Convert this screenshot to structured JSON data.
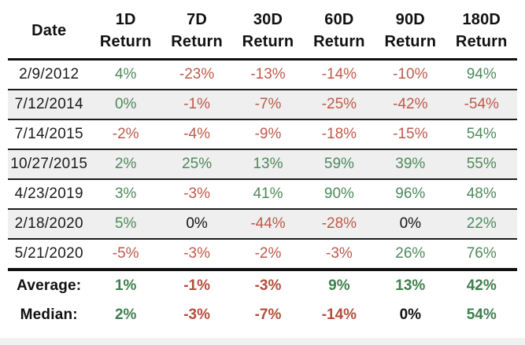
{
  "colors": {
    "green": "#4e8a5b",
    "red": "#bd5a4a",
    "black": "#141414",
    "green_bold": "#3f7f4d",
    "red_bold": "#b24e3c",
    "black_bold": "#111111",
    "alt_row_bg": "#efefef",
    "line": "#141414"
  },
  "table": {
    "columns": [
      {
        "label": "Date"
      },
      {
        "period": "1D",
        "label": "Return"
      },
      {
        "period": "7D",
        "label": "Return"
      },
      {
        "period": "30D",
        "label": "Return"
      },
      {
        "period": "60D",
        "label": "Return"
      },
      {
        "period": "90D",
        "label": "Return"
      },
      {
        "period": "180D",
        "label": "Return"
      }
    ],
    "rows": [
      {
        "date": "2/9/2012",
        "shaded": false,
        "cells": [
          {
            "text": "4%",
            "color": "green"
          },
          {
            "text": "-23%",
            "color": "red"
          },
          {
            "text": "-13%",
            "color": "red"
          },
          {
            "text": "-14%",
            "color": "red"
          },
          {
            "text": "-10%",
            "color": "red"
          },
          {
            "text": "94%",
            "color": "green"
          }
        ]
      },
      {
        "date": "7/12/2014",
        "shaded": true,
        "cells": [
          {
            "text": "0%",
            "color": "green"
          },
          {
            "text": "-1%",
            "color": "red"
          },
          {
            "text": "-7%",
            "color": "red"
          },
          {
            "text": "-25%",
            "color": "red"
          },
          {
            "text": "-42%",
            "color": "red"
          },
          {
            "text": "-54%",
            "color": "red"
          }
        ]
      },
      {
        "date": "7/14/2015",
        "shaded": false,
        "cells": [
          {
            "text": "-2%",
            "color": "red"
          },
          {
            "text": "-4%",
            "color": "red"
          },
          {
            "text": "-9%",
            "color": "red"
          },
          {
            "text": "-18%",
            "color": "red"
          },
          {
            "text": "-15%",
            "color": "red"
          },
          {
            "text": "54%",
            "color": "green"
          }
        ]
      },
      {
        "date": "10/27/2015",
        "shaded": true,
        "cells": [
          {
            "text": "2%",
            "color": "green"
          },
          {
            "text": "25%",
            "color": "green"
          },
          {
            "text": "13%",
            "color": "green"
          },
          {
            "text": "59%",
            "color": "green"
          },
          {
            "text": "39%",
            "color": "green"
          },
          {
            "text": "55%",
            "color": "green"
          }
        ]
      },
      {
        "date": "4/23/2019",
        "shaded": false,
        "cells": [
          {
            "text": "3%",
            "color": "green"
          },
          {
            "text": "-3%",
            "color": "red"
          },
          {
            "text": "41%",
            "color": "green"
          },
          {
            "text": "90%",
            "color": "green"
          },
          {
            "text": "96%",
            "color": "green"
          },
          {
            "text": "48%",
            "color": "green"
          }
        ]
      },
      {
        "date": "2/18/2020",
        "shaded": true,
        "cells": [
          {
            "text": "5%",
            "color": "green"
          },
          {
            "text": "0%",
            "color": "black"
          },
          {
            "text": "-44%",
            "color": "red"
          },
          {
            "text": "-28%",
            "color": "red"
          },
          {
            "text": "0%",
            "color": "black"
          },
          {
            "text": "22%",
            "color": "green"
          }
        ]
      },
      {
        "date": "5/21/2020",
        "shaded": false,
        "cells": [
          {
            "text": "-5%",
            "color": "red"
          },
          {
            "text": "-3%",
            "color": "red"
          },
          {
            "text": "-2%",
            "color": "red"
          },
          {
            "text": "-3%",
            "color": "red"
          },
          {
            "text": "26%",
            "color": "green"
          },
          {
            "text": "76%",
            "color": "green"
          }
        ]
      }
    ],
    "summary": [
      {
        "label": "Average:",
        "cells": [
          {
            "text": "1%",
            "color": "green_bold"
          },
          {
            "text": "-1%",
            "color": "red_bold"
          },
          {
            "text": "-3%",
            "color": "red_bold"
          },
          {
            "text": "9%",
            "color": "green_bold"
          },
          {
            "text": "13%",
            "color": "green_bold"
          },
          {
            "text": "42%",
            "color": "green_bold"
          }
        ]
      },
      {
        "label": "Median:",
        "cells": [
          {
            "text": "2%",
            "color": "green_bold"
          },
          {
            "text": "-3%",
            "color": "red_bold"
          },
          {
            "text": "-7%",
            "color": "red_bold"
          },
          {
            "text": "-14%",
            "color": "red_bold"
          },
          {
            "text": "0%",
            "color": "black_bold"
          },
          {
            "text": "54%",
            "color": "green_bold"
          }
        ]
      }
    ]
  },
  "chart_data": {
    "type": "table",
    "title": "Returns by date over multiple horizons",
    "columns": [
      "Date",
      "1D Return",
      "7D Return",
      "30D Return",
      "60D Return",
      "90D Return",
      "180D Return"
    ],
    "rows": [
      [
        "2/9/2012",
        4,
        -23,
        -13,
        -14,
        -10,
        94
      ],
      [
        "7/12/2014",
        0,
        -1,
        -7,
        -25,
        -42,
        -54
      ],
      [
        "7/14/2015",
        -2,
        -4,
        -9,
        -18,
        -15,
        54
      ],
      [
        "10/27/2015",
        2,
        25,
        13,
        59,
        39,
        55
      ],
      [
        "4/23/2019",
        3,
        -3,
        41,
        90,
        96,
        48
      ],
      [
        "2/18/2020",
        5,
        0,
        -44,
        -28,
        0,
        22
      ],
      [
        "5/21/2020",
        -5,
        -3,
        -2,
        -3,
        26,
        76
      ]
    ],
    "summary_rows": [
      [
        "Average:",
        1,
        -1,
        -3,
        9,
        13,
        42
      ],
      [
        "Median:",
        2,
        -3,
        -7,
        -14,
        0,
        54
      ]
    ],
    "units": "percent",
    "layout_hints": {
      "positive_color": "green",
      "negative_color": "red",
      "zero_color": "black or green (as shown)",
      "alternating_row_shading": true
    }
  }
}
